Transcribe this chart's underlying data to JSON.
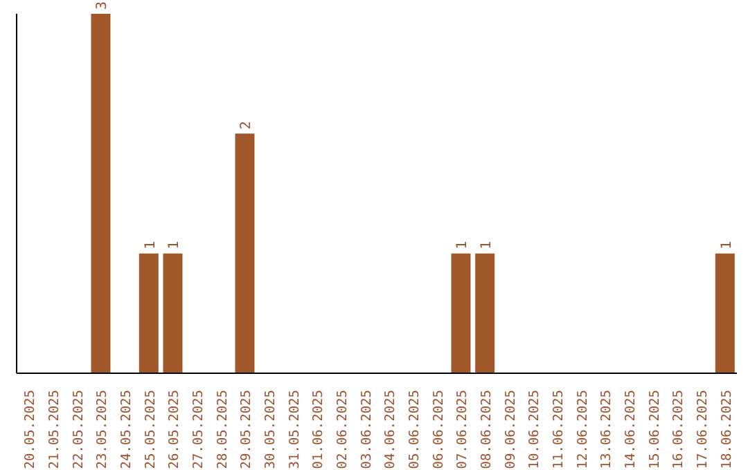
{
  "chart_data": {
    "type": "bar",
    "categories": [
      "20.05.2025",
      "21.05.2025",
      "22.05.2025",
      "23.05.2025",
      "24.05.2025",
      "25.05.2025",
      "26.05.2025",
      "27.05.2025",
      "28.05.2025",
      "29.05.2025",
      "30.05.2025",
      "31.05.2025",
      "01.06.2025",
      "02.06.2025",
      "03.06.2025",
      "04.06.2025",
      "05.06.2025",
      "06.06.2025",
      "07.06.2025",
      "08.06.2025",
      "09.06.2025",
      "10.06.2025",
      "11.06.2025",
      "12.06.2025",
      "13.06.2025",
      "14.06.2025",
      "15.06.2025",
      "16.06.2025",
      "17.06.2025",
      "18.06.2025"
    ],
    "values": [
      null,
      null,
      null,
      3,
      null,
      1,
      1,
      null,
      null,
      2,
      null,
      null,
      null,
      null,
      null,
      null,
      null,
      null,
      1,
      1,
      null,
      null,
      null,
      null,
      null,
      null,
      null,
      null,
      null,
      1
    ],
    "color": "#a0582a",
    "data_labels": true,
    "grid": false
  }
}
